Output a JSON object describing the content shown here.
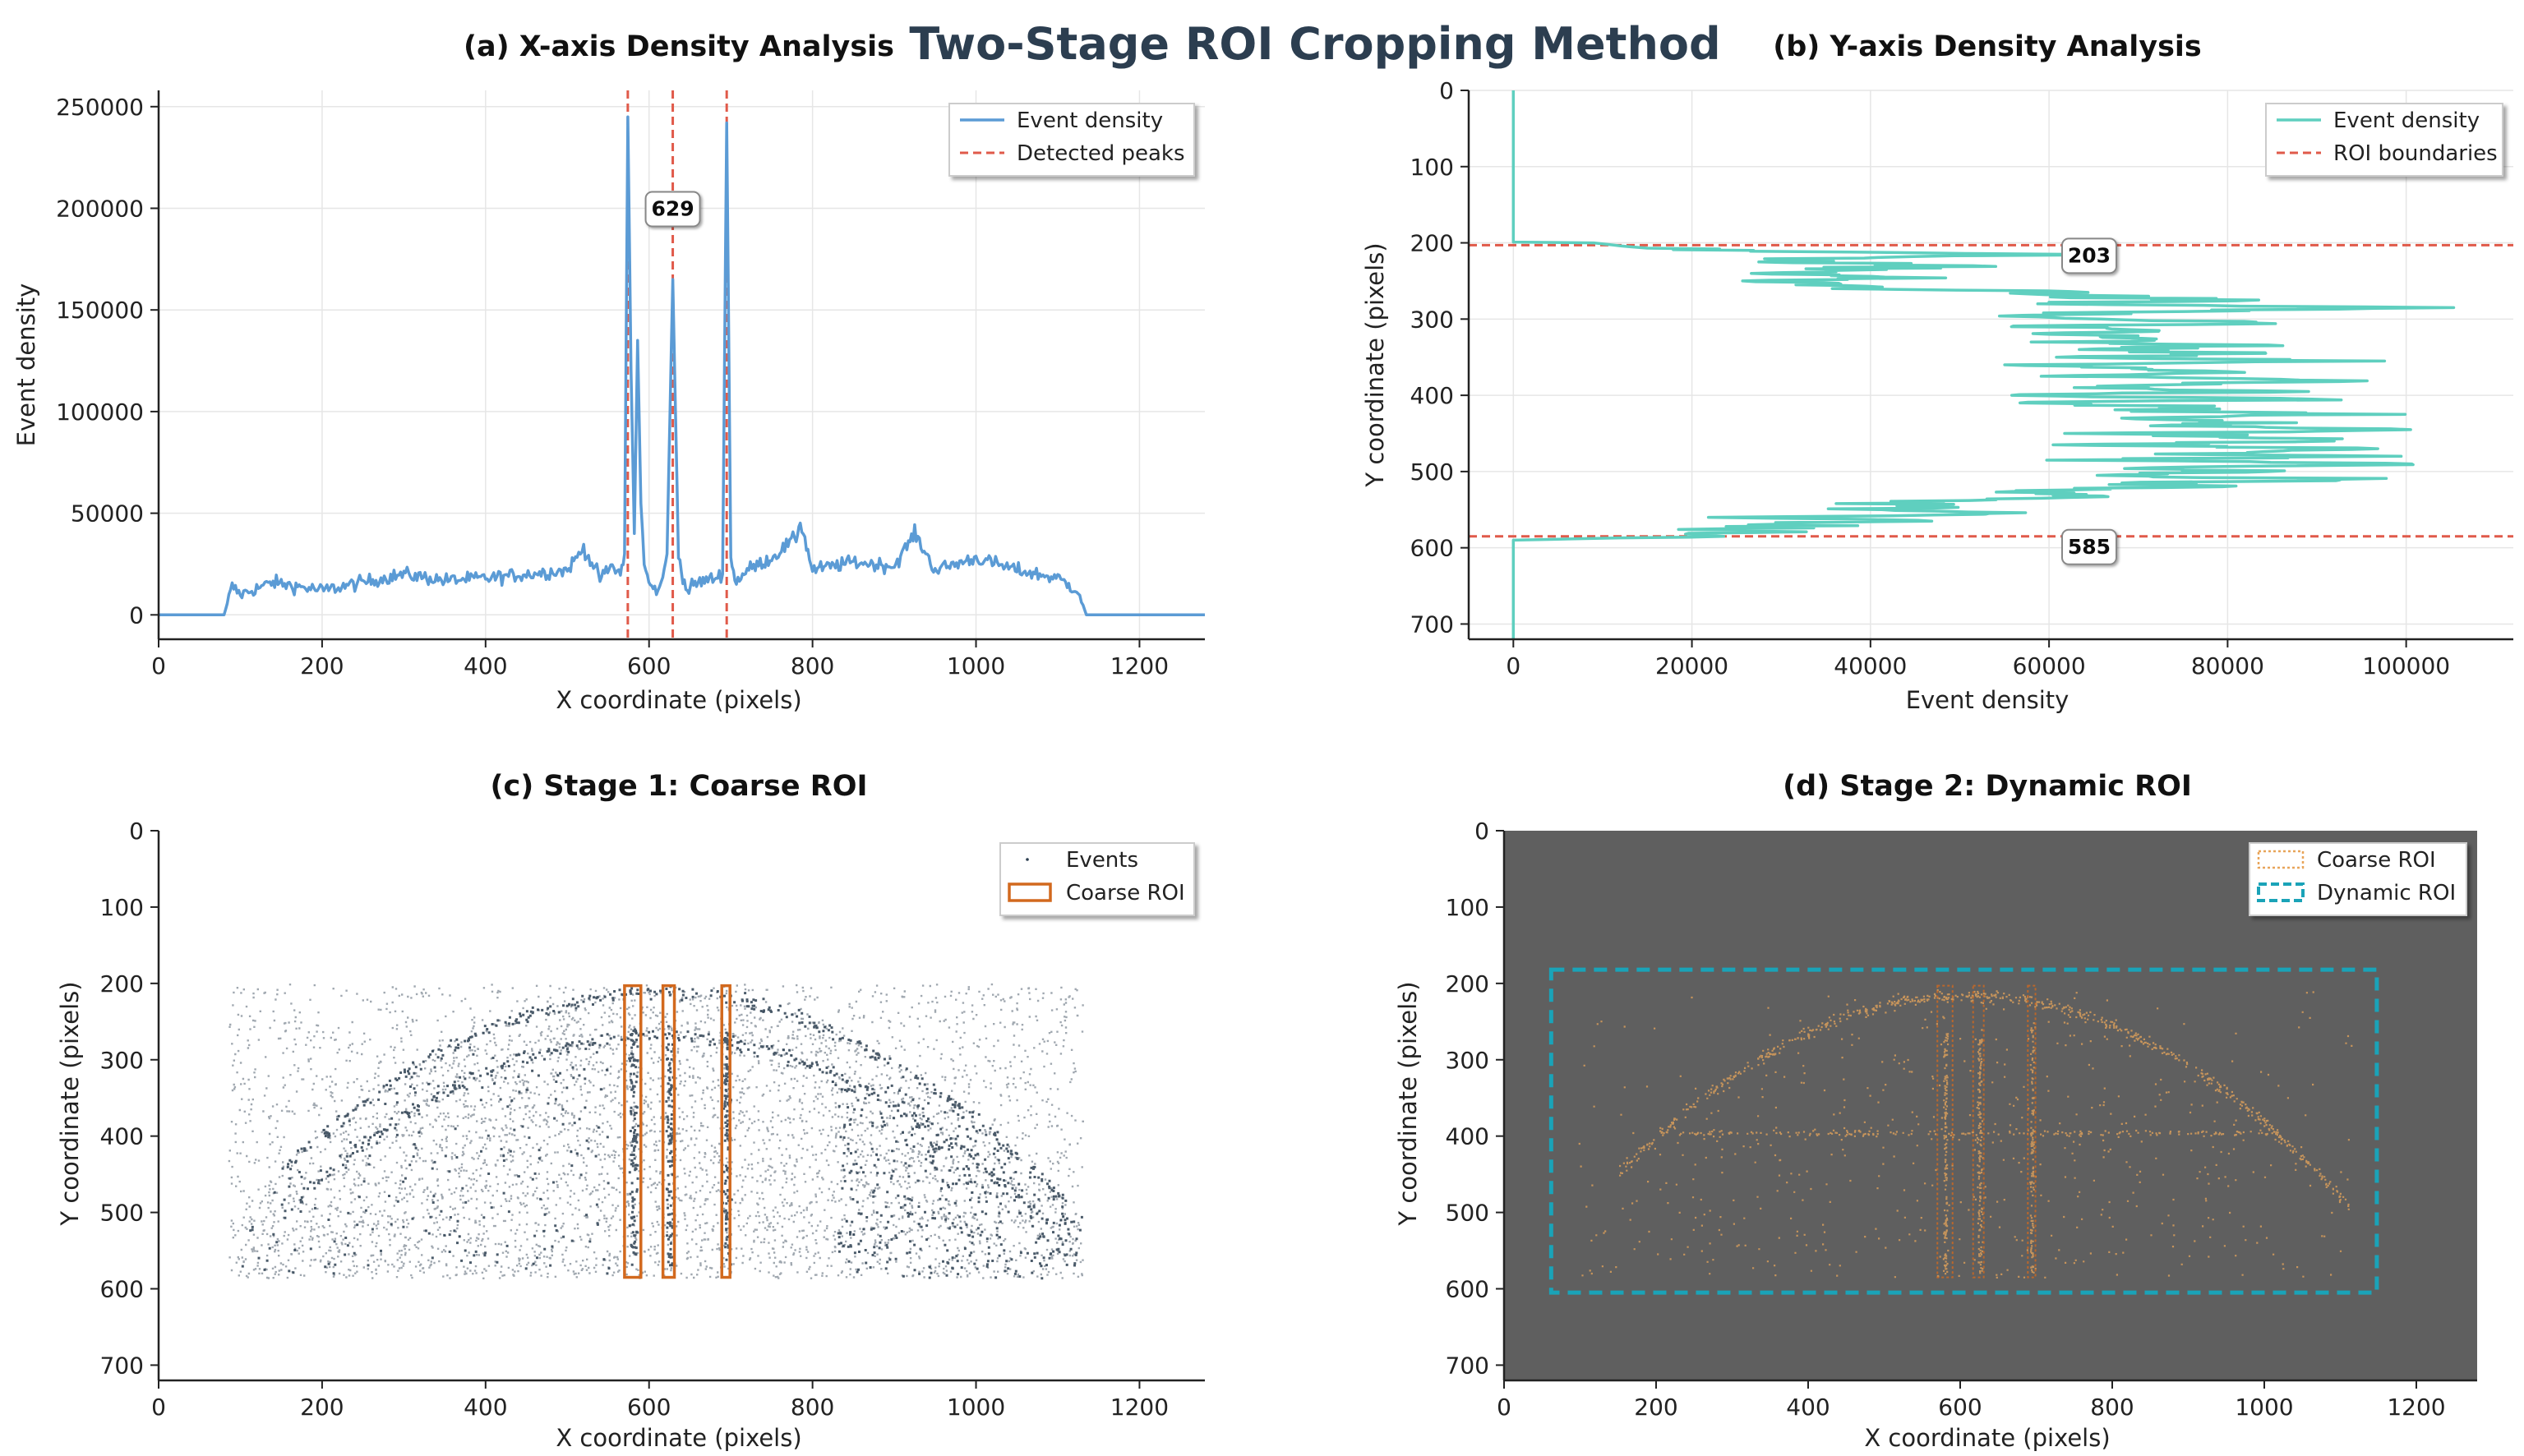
{
  "suptitle": "Two-Stage ROI Cropping Method",
  "colors": {
    "x_density": "#5b9bd5",
    "y_density": "#5fcfbf",
    "peak_line": "#e05a4a",
    "events": "#2c3e50",
    "coarse_roi": "#d2691e",
    "dynamic_roi": "#1aa3b8",
    "dark_bg": "#5f5f5f",
    "event_warm": "#e8a55a"
  },
  "chart_data": [
    {
      "id": "a",
      "type": "line",
      "title": "(a) X-axis Density Analysis",
      "xlabel": "X coordinate (pixels)",
      "ylabel": "Event density",
      "xlim": [
        0,
        1280
      ],
      "ylim": [
        -12000,
        258000
      ],
      "xticks": [
        "0",
        "200",
        "400",
        "600",
        "800",
        "1000",
        "1200"
      ],
      "xtick_values": [
        0,
        200,
        400,
        600,
        800,
        1000,
        1200
      ],
      "yticks": [
        "0",
        "50000",
        "100000",
        "150000",
        "200000",
        "250000"
      ],
      "ytick_values": [
        0,
        50000,
        100000,
        150000,
        200000,
        250000
      ],
      "legend": [
        "Event density",
        "Detected peaks"
      ],
      "peaks": [
        574,
        629,
        695
      ],
      "annotation": "629",
      "x": [
        0,
        80,
        90,
        100,
        140,
        200,
        250,
        300,
        350,
        400,
        450,
        500,
        520,
        540,
        555,
        565,
        570,
        574,
        578,
        582,
        586,
        590,
        594,
        598,
        605,
        615,
        622,
        629,
        636,
        645,
        660,
        680,
        690,
        695,
        700,
        705,
        720,
        750,
        780,
        785,
        800,
        850,
        900,
        925,
        950,
        1000,
        1050,
        1100,
        1125,
        1135,
        1280
      ],
      "y": [
        0,
        0,
        14000,
        10000,
        16000,
        12000,
        16000,
        20000,
        17000,
        18000,
        20000,
        22000,
        33000,
        18000,
        24000,
        20000,
        30000,
        245000,
        120000,
        40000,
        135000,
        55000,
        25000,
        18000,
        12000,
        14000,
        30000,
        165000,
        30000,
        12000,
        16000,
        18000,
        20000,
        242000,
        30000,
        16000,
        22000,
        28000,
        38000,
        46000,
        22000,
        26000,
        24000,
        40000,
        22000,
        28000,
        22000,
        18000,
        12000,
        0,
        0
      ]
    },
    {
      "id": "b",
      "type": "line",
      "title": "(b) Y-axis Density Analysis",
      "xlabel": "Event density",
      "ylabel": "Y coordinate (pixels)",
      "xlim": [
        -5000,
        112000
      ],
      "ylim": [
        720,
        0
      ],
      "xticks": [
        "0",
        "20000",
        "40000",
        "60000",
        "80000",
        "100000"
      ],
      "xtick_values": [
        0,
        20000,
        40000,
        60000,
        80000,
        100000
      ],
      "yticks": [
        "0",
        "100",
        "200",
        "300",
        "400",
        "500",
        "600",
        "700"
      ],
      "ytick_values": [
        0,
        100,
        200,
        300,
        400,
        500,
        600,
        700
      ],
      "legend": [
        "Event density",
        "ROI boundaries"
      ],
      "boundaries": [
        203,
        585
      ],
      "annotations": [
        "203",
        "585"
      ],
      "y": [
        0,
        199,
        200,
        204,
        208,
        212,
        216,
        220,
        225,
        230,
        235,
        240,
        245,
        250,
        255,
        260,
        265,
        270,
        275,
        280,
        285,
        290,
        295,
        300,
        305,
        310,
        315,
        320,
        325,
        330,
        335,
        340,
        345,
        350,
        355,
        360,
        365,
        370,
        375,
        380,
        385,
        390,
        395,
        400,
        405,
        410,
        415,
        420,
        425,
        430,
        435,
        440,
        445,
        450,
        455,
        460,
        465,
        470,
        475,
        480,
        485,
        490,
        495,
        500,
        505,
        510,
        515,
        520,
        525,
        530,
        535,
        540,
        545,
        550,
        555,
        560,
        565,
        570,
        575,
        580,
        585,
        590,
        720
      ],
      "density": [
        0,
        0,
        9000,
        12000,
        16000,
        34000,
        60000,
        38000,
        28000,
        46000,
        40000,
        30000,
        42000,
        27000,
        35000,
        42000,
        64000,
        62000,
        77000,
        58000,
        104000,
        70000,
        55000,
        64000,
        86000,
        52000,
        71000,
        59000,
        76000,
        60000,
        82000,
        62000,
        79000,
        64000,
        91000,
        55000,
        69000,
        84000,
        58000,
        92000,
        76000,
        60000,
        86000,
        49000,
        94000,
        57000,
        81000,
        73000,
        89000,
        68000,
        84000,
        75000,
        97000,
        70000,
        81000,
        93000,
        64000,
        101000,
        76000,
        91000,
        62000,
        106000,
        72000,
        87000,
        59000,
        99000,
        68000,
        80000,
        52000,
        65000,
        60000,
        44000,
        47000,
        39000,
        55000,
        32000,
        38000,
        29000,
        27000,
        24000,
        20000,
        0,
        0
      ]
    },
    {
      "id": "c",
      "type": "scatter",
      "title": "(c) Stage 1: Coarse ROI",
      "xlabel": "X coordinate (pixels)",
      "ylabel": "Y coordinate (pixels)",
      "xlim": [
        0,
        1280
      ],
      "ylim": [
        720,
        0
      ],
      "xticks": [
        "0",
        "200",
        "400",
        "600",
        "800",
        "1000",
        "1200"
      ],
      "xtick_values": [
        0,
        200,
        400,
        600,
        800,
        1000,
        1200
      ],
      "yticks": [
        "0",
        "100",
        "200",
        "300",
        "400",
        "500",
        "600",
        "700"
      ],
      "ytick_values": [
        0,
        100,
        200,
        300,
        400,
        500,
        600,
        700
      ],
      "legend": [
        "Events",
        "Coarse ROI"
      ],
      "event_region": {
        "x": [
          85,
          1130
        ],
        "y": [
          200,
          585
        ]
      },
      "coarse_rois": [
        {
          "x0": 570,
          "x1": 590,
          "y0": 203,
          "y1": 585
        },
        {
          "x0": 617,
          "x1": 631,
          "y0": 203,
          "y1": 585
        },
        {
          "x0": 689,
          "x1": 699,
          "y0": 203,
          "y1": 585
        }
      ]
    },
    {
      "id": "d",
      "type": "scatter",
      "title": "(d) Stage 2: Dynamic ROI",
      "xlabel": "X coordinate (pixels)",
      "ylabel": "Y coordinate (pixels)",
      "xlim": [
        0,
        1280
      ],
      "ylim": [
        720,
        0
      ],
      "xticks": [
        "0",
        "200",
        "400",
        "600",
        "800",
        "1000",
        "1200"
      ],
      "xtick_values": [
        0,
        200,
        400,
        600,
        800,
        1000,
        1200
      ],
      "yticks": [
        "0",
        "100",
        "200",
        "300",
        "400",
        "500",
        "600",
        "700"
      ],
      "ytick_values": [
        0,
        100,
        200,
        300,
        400,
        500,
        600,
        700
      ],
      "legend": [
        "Coarse ROI",
        "Dynamic ROI"
      ],
      "dynamic_roi": {
        "x0": 62,
        "x1": 1148,
        "y0": 182,
        "y1": 605
      },
      "coarse_rois": [
        {
          "x0": 570,
          "x1": 590,
          "y0": 203,
          "y1": 585
        },
        {
          "x0": 617,
          "x1": 631,
          "y0": 203,
          "y1": 585
        },
        {
          "x0": 689,
          "x1": 699,
          "y0": 203,
          "y1": 585
        }
      ]
    }
  ]
}
